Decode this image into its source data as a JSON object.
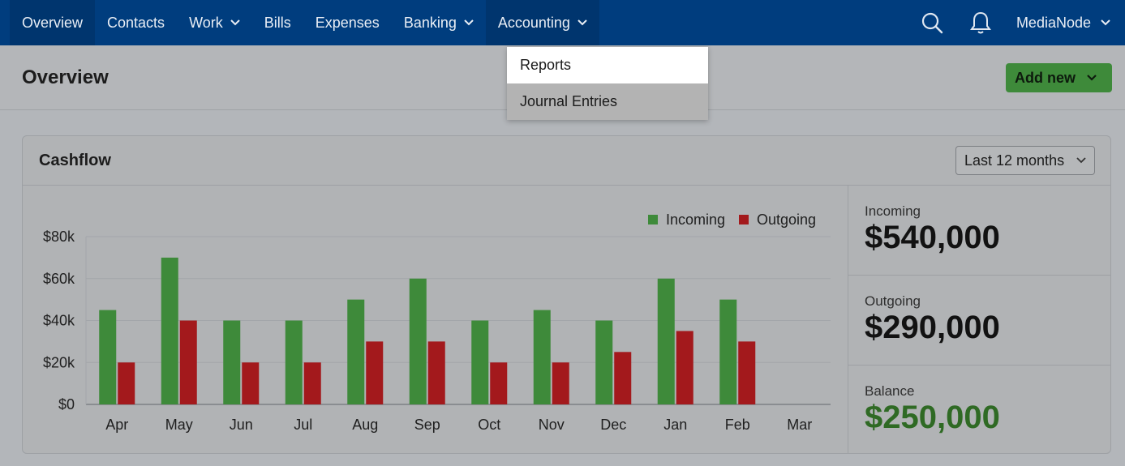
{
  "nav": {
    "items": [
      {
        "label": "Overview",
        "has_chevron": false,
        "active": true
      },
      {
        "label": "Contacts",
        "has_chevron": false,
        "active": false
      },
      {
        "label": "Work",
        "has_chevron": true,
        "active": false
      },
      {
        "label": "Bills",
        "has_chevron": false,
        "active": false
      },
      {
        "label": "Expenses",
        "has_chevron": false,
        "active": false
      },
      {
        "label": "Banking",
        "has_chevron": true,
        "active": false
      },
      {
        "label": "Accounting",
        "has_chevron": true,
        "active": true
      }
    ],
    "account_name": "MediaNode",
    "icons": [
      "search-icon",
      "bell-icon"
    ]
  },
  "header": {
    "title": "Overview",
    "add_new_label": "Add new"
  },
  "accounting_menu": {
    "items": [
      "Reports",
      "Journal Entries"
    ],
    "highlighted": "Reports"
  },
  "cashflow": {
    "title": "Cashflow",
    "range_label": "Last 12 months",
    "stats": [
      {
        "label": "Incoming",
        "value": "$540,000"
      },
      {
        "label": "Outgoing",
        "value": "$290,000"
      },
      {
        "label": "Balance",
        "value": "$250,000"
      }
    ]
  },
  "colors": {
    "incoming": "#3e8a3a",
    "outgoing": "#a3191c",
    "nav_bg": "#003d7e"
  },
  "chart_data": {
    "type": "bar",
    "categories": [
      "Apr",
      "May",
      "Jun",
      "Jul",
      "Aug",
      "Sep",
      "Oct",
      "Nov",
      "Dec",
      "Jan",
      "Feb",
      "Mar"
    ],
    "series": [
      {
        "name": "Incoming",
        "values": [
          45000,
          70000,
          40000,
          40000,
          50000,
          60000,
          40000,
          45000,
          40000,
          60000,
          50000,
          0
        ]
      },
      {
        "name": "Outgoing",
        "values": [
          20000,
          40000,
          20000,
          20000,
          30000,
          30000,
          20000,
          20000,
          25000,
          35000,
          30000,
          0
        ]
      }
    ],
    "yticks": [
      "$0",
      "$20k",
      "$40k",
      "$60k",
      "$80k"
    ],
    "ylim": [
      0,
      80000
    ],
    "grid": true,
    "legend_position": "top-right"
  }
}
